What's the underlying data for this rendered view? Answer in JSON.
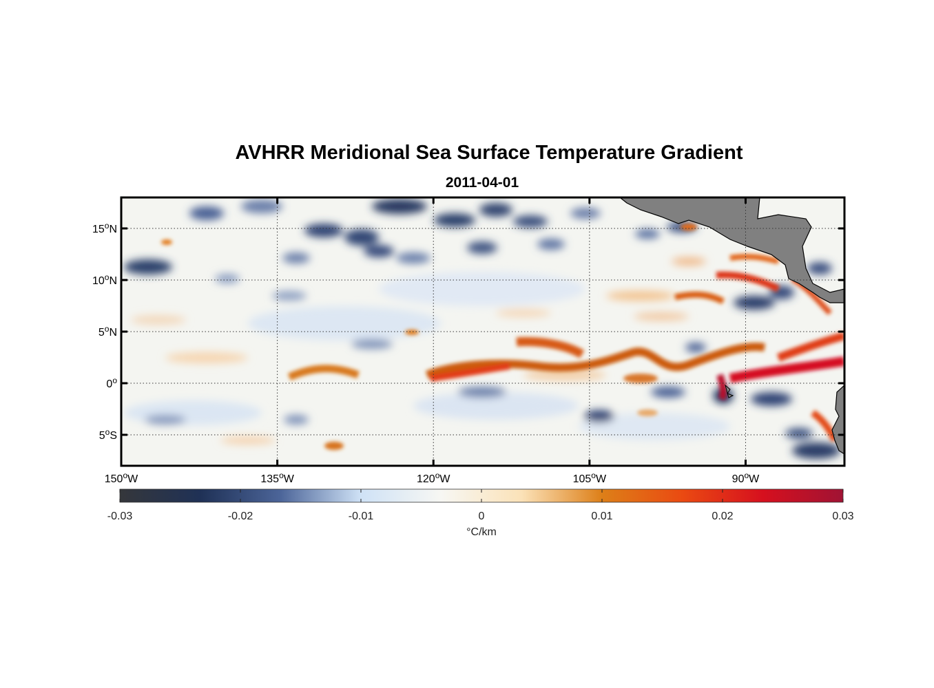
{
  "title": "AVHRR Meridional Sea Surface Temperature Gradient",
  "subtitle": "2011-04-01",
  "chart_data": {
    "type": "heatmap",
    "variable": "meridional SST gradient",
    "date": "2011-04-01",
    "lon_range": [
      -150,
      -80.5
    ],
    "lat_range": [
      -8,
      18
    ],
    "lat_ticks": [
      {
        "value": 15,
        "num": "15",
        "hemi": "N"
      },
      {
        "value": 10,
        "num": "10",
        "hemi": "N"
      },
      {
        "value": 5,
        "num": "5",
        "hemi": "N"
      },
      {
        "value": 0,
        "num": "0",
        "hemi": ""
      },
      {
        "value": -5,
        "num": "5",
        "hemi": "S"
      }
    ],
    "lon_ticks": [
      {
        "value": -150,
        "num": "150",
        "hemi": "W"
      },
      {
        "value": -135,
        "num": "135",
        "hemi": "W"
      },
      {
        "value": -120,
        "num": "120",
        "hemi": "W"
      },
      {
        "value": -105,
        "num": "105",
        "hemi": "W"
      },
      {
        "value": -90,
        "num": "90",
        "hemi": "W"
      }
    ],
    "grid": "dotted",
    "colorbar": {
      "range": [
        -0.03,
        0.03
      ],
      "ticks": [
        "-0.03",
        "-0.02",
        "-0.01",
        "0",
        "0.01",
        "0.02",
        "0.03"
      ],
      "label": "°C/km",
      "stops": [
        "#35373b",
        "#1f3156",
        "#4c6599",
        "#cfe2f6",
        "#f7f7f3",
        "#fbe2b8",
        "#dd7f18",
        "#ea4a12",
        "#d6101e",
        "#a01334"
      ]
    },
    "features": [
      {
        "name": "equatorial front",
        "sign": "positive",
        "lon_start": -120,
        "lon_end": -82,
        "lat": 1
      },
      {
        "name": "warm band near 4N",
        "sign": "positive",
        "lon_start": -112,
        "lon_end": -103,
        "lat": 4
      },
      {
        "name": "coastal warm bands",
        "sign": "positive",
        "lon_start": -95,
        "lon_end": -84,
        "lat": 10
      },
      {
        "name": "cold eddies north",
        "sign": "negative",
        "lon_start": -140,
        "lon_end": -105,
        "lat": 15
      }
    ]
  }
}
